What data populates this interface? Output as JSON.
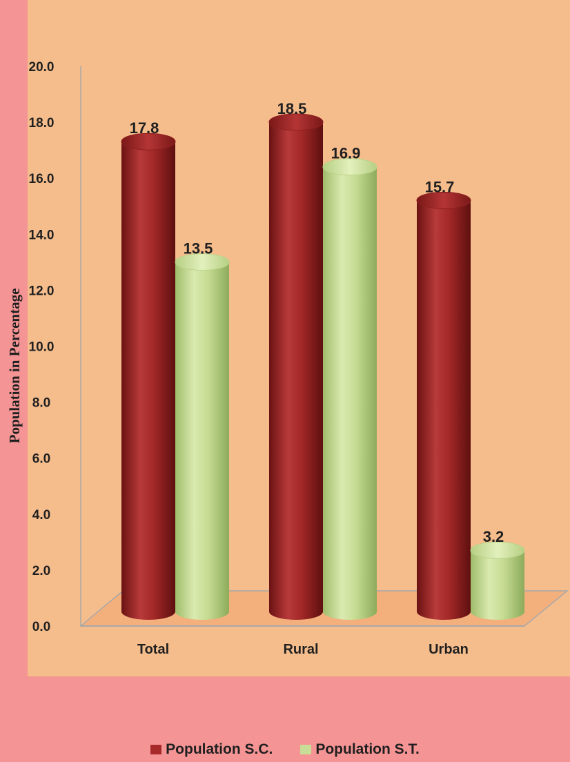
{
  "chart_data": {
    "type": "bar",
    "categories": [
      "Total",
      "Rural",
      "Urban"
    ],
    "series": [
      {
        "name": "Population S.C.",
        "values": [
          17.8,
          18.5,
          15.7
        ],
        "color": "#a62a2a"
      },
      {
        "name": "Population S.T.",
        "values": [
          13.5,
          16.9,
          3.2
        ],
        "color": "#c8dd96"
      }
    ],
    "ylabel": "Population in Percentage",
    "xlabel": "",
    "ylim": [
      0,
      20
    ],
    "yticks": [
      "0.0",
      "2.0",
      "4.0",
      "6.0",
      "8.0",
      "10.0",
      "12.0",
      "14.0",
      "16.0",
      "18.0",
      "20.0"
    ],
    "data_labels": [
      [
        "17.8",
        "18.5",
        "15.7"
      ],
      [
        "13.5",
        "16.9",
        "3.2"
      ]
    ],
    "style": "3d-cylinder",
    "legend_position": "bottom-center"
  }
}
